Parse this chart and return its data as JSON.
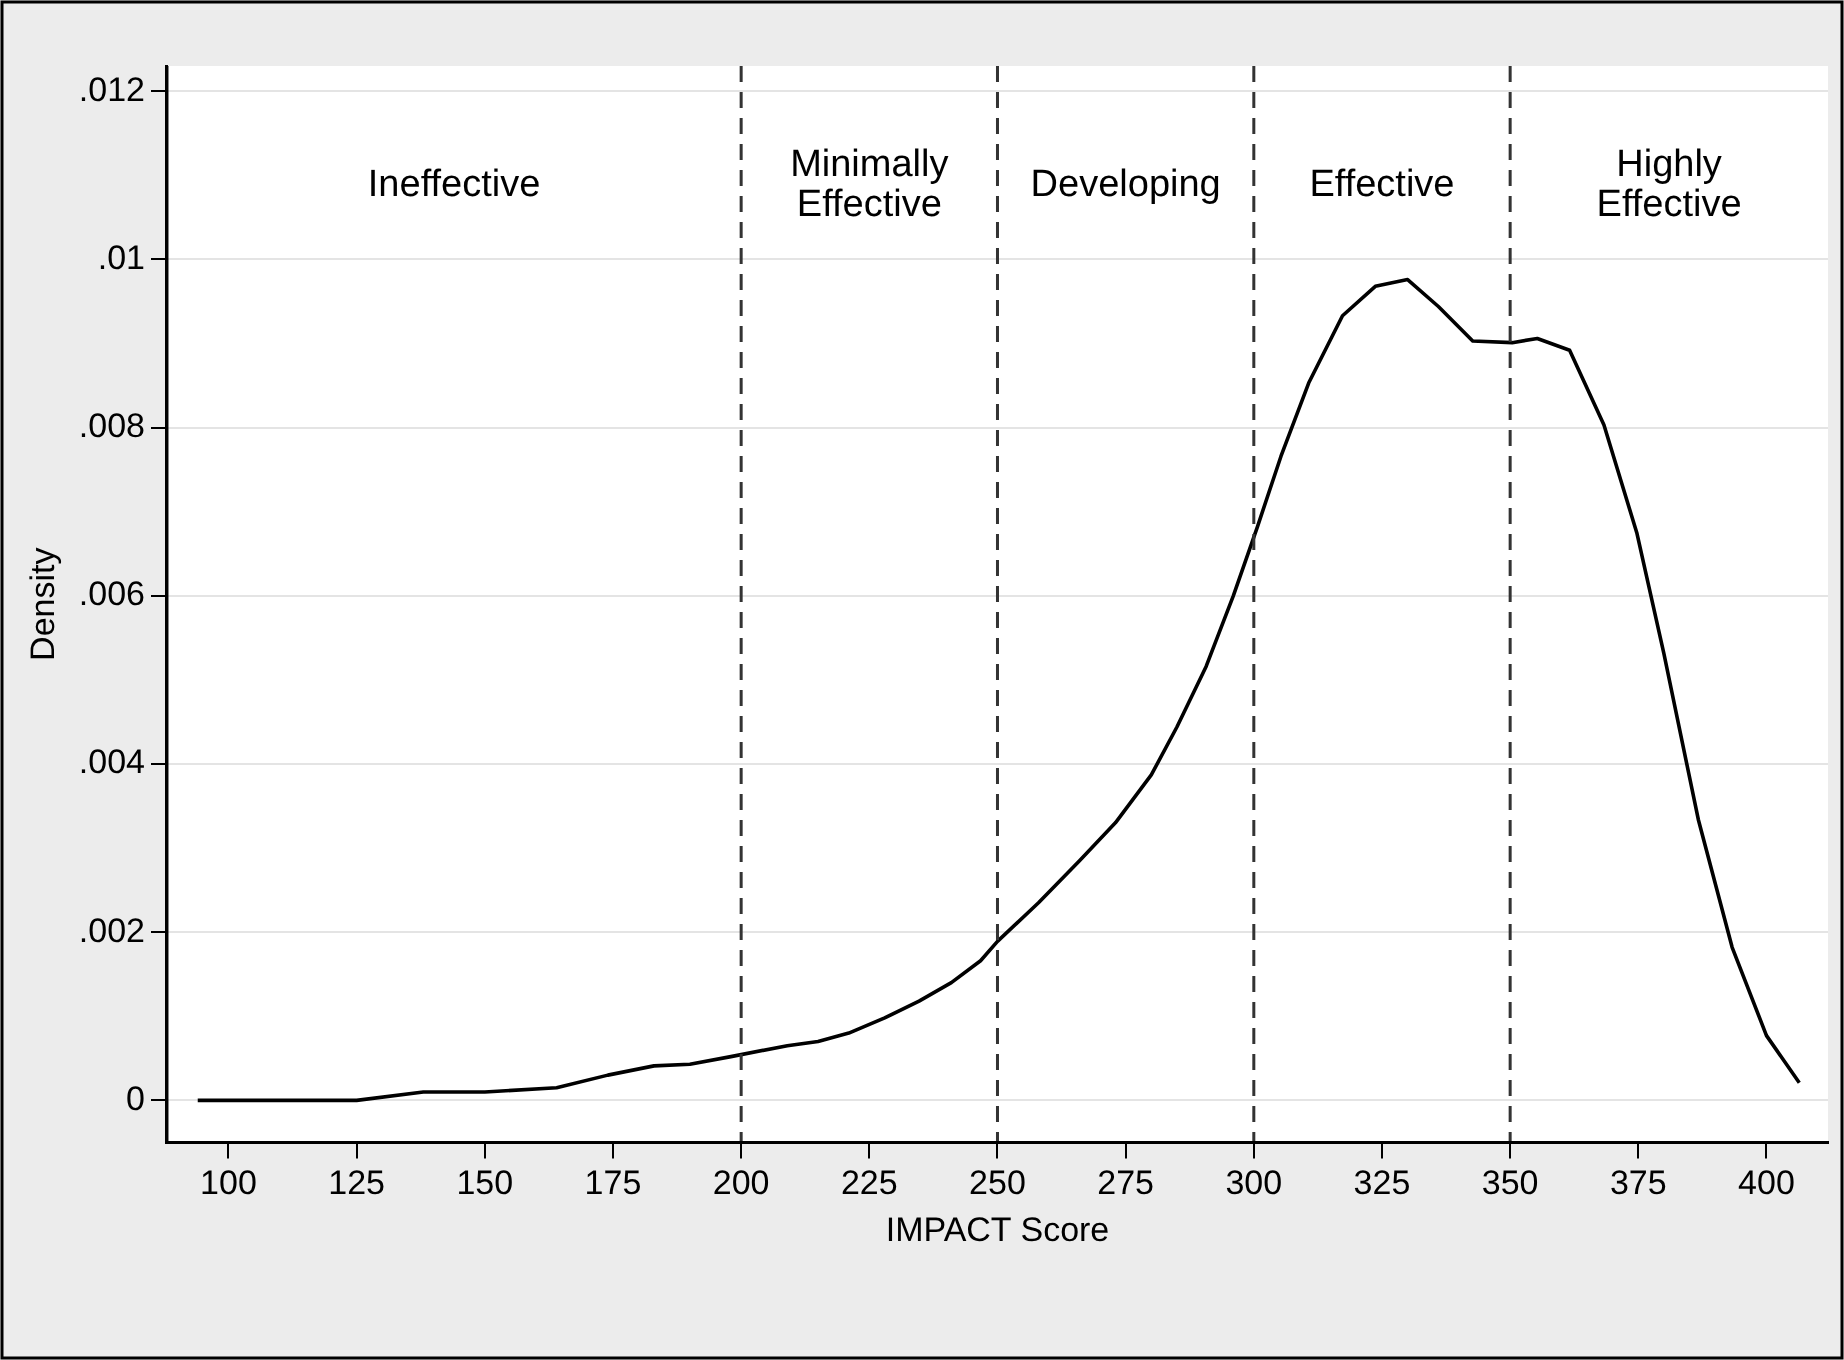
{
  "chart_data": {
    "type": "line",
    "xlabel": "IMPACT Score",
    "ylabel": "Density",
    "x": [
      94,
      115.6,
      125,
      138,
      150,
      164,
      174,
      183,
      190,
      198,
      209,
      215,
      221,
      228,
      234.7,
      241,
      246.7,
      250,
      258,
      266,
      273,
      280,
      285,
      290.7,
      296,
      300.7,
      305.3,
      310.7,
      317.3,
      323.7,
      330,
      336,
      342.7,
      350.4,
      355.3,
      361.6,
      368.3,
      374.7,
      380,
      386.7,
      393.3,
      400,
      406.4
    ],
    "series": [
      {
        "color": "#000000",
        "values": [
          0,
          0,
          0,
          0.0001,
          0.0001,
          0.00015,
          0.0003,
          0.00041,
          0.00043,
          0.00052,
          0.00065,
          0.0007,
          0.0008,
          0.00098,
          0.00118,
          0.0014,
          0.00166,
          0.00189,
          0.00235,
          0.00285,
          0.0033,
          0.00387,
          0.00444,
          0.00516,
          0.006,
          0.00682,
          0.00766,
          0.00853,
          0.00933,
          0.00968,
          0.00976,
          0.00944,
          0.00903,
          0.00901,
          0.00906,
          0.00892,
          0.00803,
          0.00675,
          0.00531,
          0.00334,
          0.00182,
          0.00077,
          0.00021
        ]
      }
    ],
    "xlim": [
      88,
      412
    ],
    "xticks": [
      100,
      125,
      150,
      175,
      200,
      225,
      250,
      275,
      300,
      325,
      350,
      375,
      400
    ],
    "ylim": [
      -0.0005,
      0.0123
    ],
    "yticks": [
      {
        "value": 0,
        "label": "0"
      },
      {
        "value": 0.002,
        "label": ".002"
      },
      {
        "value": 0.004,
        "label": ".004"
      },
      {
        "value": 0.006,
        "label": ".006"
      },
      {
        "value": 0.008,
        "label": ".008"
      },
      {
        "value": 0.01,
        "label": ".01"
      },
      {
        "value": 0.012,
        "label": ".012"
      }
    ],
    "grid": "y",
    "legend": false,
    "marker": "none",
    "ref_lines": [
      {
        "axis": "x",
        "value": 200,
        "line_style": "dashed",
        "color": "#333333"
      },
      {
        "axis": "x",
        "value": 250,
        "line_style": "dashed",
        "color": "#333333"
      },
      {
        "axis": "x",
        "value": 300,
        "line_style": "dashed",
        "color": "#333333"
      },
      {
        "axis": "x",
        "value": 350,
        "line_style": "dashed",
        "color": "#333333"
      }
    ],
    "annotations": [
      "Ineffective",
      "Minimally\nEffective",
      "Developing",
      "Effective",
      "Highly\nEffective"
    ]
  }
}
